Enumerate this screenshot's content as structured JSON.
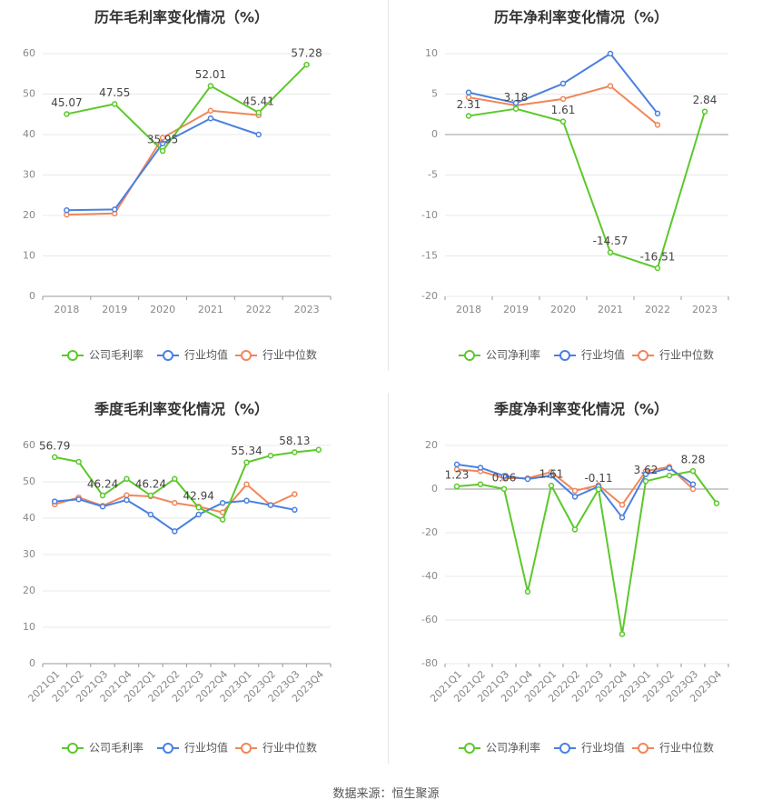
{
  "colors": {
    "company": "#5cc82a",
    "industry_avg": "#4a80e0",
    "industry_median": "#f0865a",
    "grid": "#e8e8e8",
    "axis": "#999999",
    "tick_text": "#888888",
    "title": "#333333"
  },
  "footer": {
    "label": "数据来源：",
    "source": "恒生聚源"
  },
  "chart_data": [
    {
      "id": "annual-gross",
      "type": "line",
      "title": "历年毛利率变化情况（%）",
      "categories": [
        "2018",
        "2019",
        "2020",
        "2021",
        "2022",
        "2023"
      ],
      "ylim": [
        0,
        60
      ],
      "yticks": [
        0,
        10,
        20,
        30,
        40,
        50,
        60
      ],
      "ytick_labels": [
        "0",
        "10",
        "20",
        "30",
        "40",
        "50",
        "60"
      ],
      "series": [
        {
          "name": "公司毛利率",
          "key": "company",
          "values": [
            45.07,
            47.55,
            35.95,
            52.01,
            45.41,
            57.28
          ],
          "labels": [
            "45.07",
            "47.55",
            "35.95",
            "52.01",
            "45.41",
            "57.28"
          ]
        },
        {
          "name": "行业均值",
          "key": "industry_avg",
          "values": [
            21.3,
            21.5,
            37.8,
            44.0,
            40.0,
            null
          ]
        },
        {
          "name": "行业中位数",
          "key": "industry_median",
          "values": [
            20.2,
            20.5,
            39.2,
            45.9,
            44.8,
            null
          ]
        }
      ]
    },
    {
      "id": "annual-net",
      "type": "line",
      "title": "历年净利率变化情况（%）",
      "categories": [
        "2018",
        "2019",
        "2020",
        "2021",
        "2022",
        "2023"
      ],
      "ylim": [
        -20,
        10
      ],
      "yticks": [
        -20,
        -15,
        -10,
        -5,
        0,
        5,
        10
      ],
      "ytick_labels": [
        "-20",
        "-15",
        "-10",
        "-5",
        "0",
        "5",
        "10"
      ],
      "series": [
        {
          "name": "公司净利率",
          "key": "company",
          "values": [
            2.31,
            3.18,
            1.61,
            -14.57,
            -16.51,
            2.84
          ],
          "labels": [
            "2.31",
            "3.18",
            "1.61",
            "-14.57",
            "-16.51",
            "2.84"
          ]
        },
        {
          "name": "行业均值",
          "key": "industry_avg",
          "values": [
            5.2,
            3.9,
            6.3,
            10.0,
            2.6,
            null
          ]
        },
        {
          "name": "行业中位数",
          "key": "industry_median",
          "values": [
            4.6,
            3.6,
            4.4,
            6.0,
            1.2,
            null
          ]
        }
      ]
    },
    {
      "id": "quarterly-gross",
      "type": "line",
      "title": "季度毛利率变化情况（%）",
      "categories": [
        "2021Q1",
        "2021Q2",
        "2021Q3",
        "2021Q4",
        "2022Q1",
        "2022Q2",
        "2022Q3",
        "2022Q4",
        "2023Q1",
        "2023Q2",
        "2023Q3",
        "2023Q4"
      ],
      "ylim": [
        0,
        60
      ],
      "yticks": [
        0,
        10,
        20,
        30,
        40,
        50,
        60
      ],
      "ytick_labels": [
        "0",
        "10",
        "20",
        "30",
        "40",
        "50",
        "60"
      ],
      "series": [
        {
          "name": "公司毛利率",
          "key": "company",
          "values": [
            56.79,
            55.5,
            46.24,
            50.8,
            46.24,
            50.8,
            42.94,
            39.6,
            55.34,
            57.2,
            58.13,
            58.8
          ],
          "labels": [
            "56.79",
            "",
            "46.24",
            "",
            "46.24",
            "",
            "42.94",
            "",
            "55.34",
            "",
            "58.13",
            ""
          ]
        },
        {
          "name": "行业均值",
          "key": "industry_avg",
          "values": [
            44.6,
            45.2,
            43.2,
            45.0,
            41.0,
            36.4,
            41.0,
            44.2,
            44.8,
            43.6,
            42.3,
            null
          ]
        },
        {
          "name": "行业中位数",
          "key": "industry_median",
          "values": [
            43.8,
            45.7,
            43.4,
            46.3,
            46.0,
            44.2,
            43.2,
            41.6,
            49.3,
            43.6,
            46.6,
            null
          ]
        }
      ]
    },
    {
      "id": "quarterly-net",
      "type": "line",
      "title": "季度净利率变化情况（%）",
      "categories": [
        "2021Q1",
        "2021Q2",
        "2021Q3",
        "2021Q4",
        "2022Q1",
        "2022Q2",
        "2022Q3",
        "2022Q4",
        "2023Q1",
        "2023Q2",
        "2023Q3",
        "2023Q4"
      ],
      "ylim": [
        -80,
        20
      ],
      "yticks": [
        -80,
        -60,
        -40,
        -20,
        0,
        20
      ],
      "ytick_labels": [
        "-80",
        "-60",
        "-40",
        "-20",
        "0",
        "20"
      ],
      "series": [
        {
          "name": "公司净利率",
          "key": "company",
          "values": [
            1.23,
            2.2,
            0.06,
            -47.0,
            1.61,
            -18.5,
            -0.11,
            -66.5,
            3.62,
            6.2,
            8.28,
            -6.5
          ],
          "labels": [
            "1.23",
            "",
            "0.06",
            "",
            "1.61",
            "",
            "-0.11",
            "",
            "3.62",
            "",
            "8.28",
            ""
          ]
        },
        {
          "name": "行业均值",
          "key": "industry_avg",
          "values": [
            11.3,
            9.8,
            6.0,
            4.6,
            6.2,
            -3.5,
            1.2,
            -13.0,
            6.8,
            9.6,
            2.2,
            null
          ]
        },
        {
          "name": "行业中位数",
          "key": "industry_median",
          "values": [
            9.0,
            8.2,
            5.0,
            5.0,
            7.8,
            -0.8,
            1.8,
            -7.2,
            8.2,
            10.2,
            0.0,
            null
          ]
        }
      ]
    }
  ]
}
